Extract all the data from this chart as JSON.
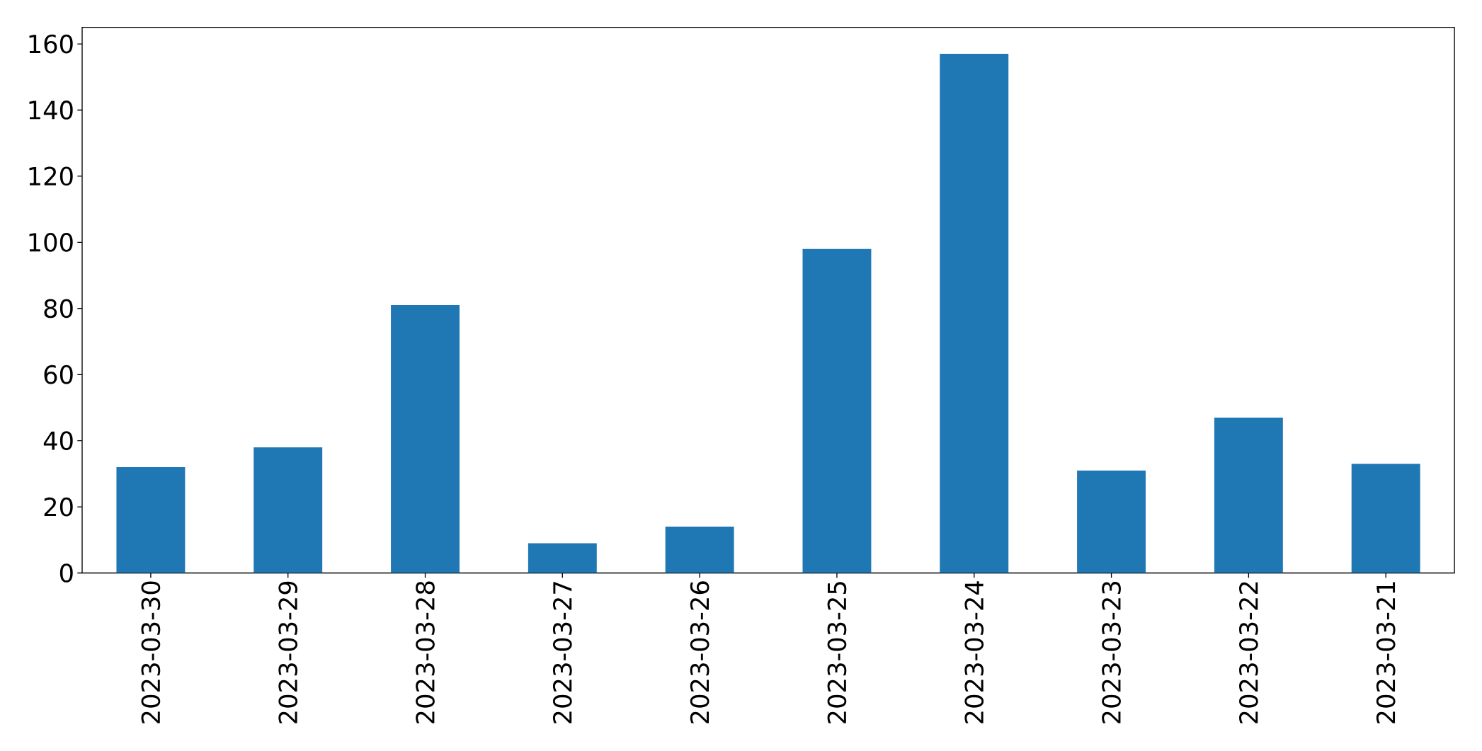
{
  "chart_data": {
    "type": "bar",
    "categories": [
      "2023-03-30",
      "2023-03-29",
      "2023-03-28",
      "2023-03-27",
      "2023-03-26",
      "2023-03-25",
      "2023-03-24",
      "2023-03-23",
      "2023-03-22",
      "2023-03-21"
    ],
    "values": [
      32,
      38,
      81,
      9,
      14,
      98,
      157,
      31,
      47,
      33
    ],
    "color": "#1f77b4",
    "ylim": [
      0,
      165
    ],
    "yticks": [
      0,
      20,
      40,
      60,
      80,
      100,
      120,
      140,
      160
    ]
  }
}
